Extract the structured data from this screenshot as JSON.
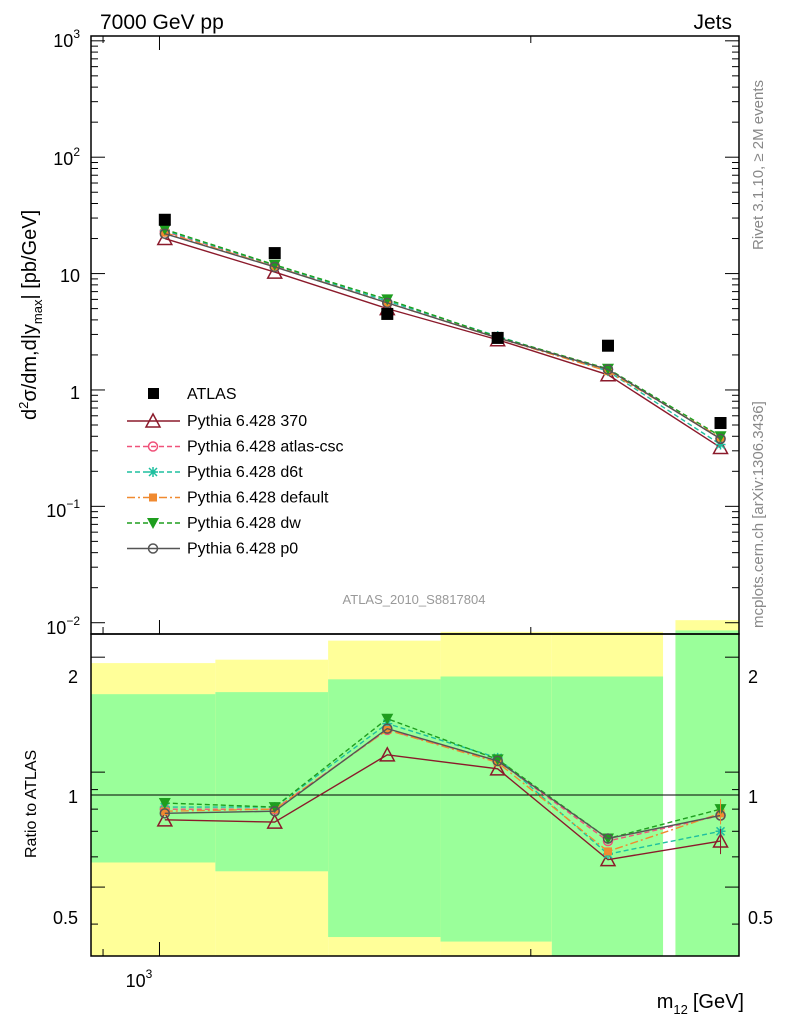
{
  "header": {
    "process": "7000 GeV pp",
    "category": "Jets"
  },
  "side_labels": {
    "rivet": "Rivet 3.1.10, ≥ 2M events",
    "source": "mcplots.cern.ch [arXiv:1306.3436]"
  },
  "watermark": "ATLAS_2010_S8817804",
  "top_yaxis_title": {
    "d": "d",
    "two": "2",
    "sigma": "σ/dm,d|y",
    "max": "max",
    "units": "| [pb/GeV]"
  },
  "top_ticklabels": [
    {
      "base": "10",
      "exp": "3"
    },
    {
      "base": "10",
      "exp": "2"
    },
    {
      "base": "10",
      "exp": ""
    },
    {
      "base": "1",
      "exp": ""
    },
    {
      "base": "10",
      "exp": "−1"
    },
    {
      "base": "10",
      "exp": "−2"
    }
  ],
  "bottom_ylabel": "Ratio to ATLAS",
  "bottom_ticklabels": [
    "2",
    "1",
    "0.5"
  ],
  "x_ticklabel": {
    "base": "10",
    "exp": "3"
  },
  "x_axis_title": {
    "m": "m",
    "sub": "12",
    "units": "[GeV]"
  },
  "legend": {
    "entries": [
      "ATLAS",
      "Pythia 6.428 370",
      "Pythia 6.428 atlas-csc",
      "Pythia 6.428 d6t",
      "Pythia 6.428 default",
      "Pythia 6.428 dw",
      "Pythia 6.428 p0"
    ]
  },
  "chart_data": {
    "type": "line",
    "xlabel": "m12 [GeV]",
    "ylabel": "d2σ/dm,d|ymax| [pb/GeV]",
    "ratio_ylabel": "Ratio to ATLAS",
    "xscale": "log",
    "yscale": "log",
    "xlim": [
      880,
      2950
    ],
    "ylim": [
      0.008,
      1100
    ],
    "ratio_ylim": [
      0.33,
      2.3
    ],
    "legend_position": "lower-left",
    "x": [
      1010,
      1240,
      1530,
      1880,
      2310,
      2850
    ],
    "bins": [
      [
        910,
        1110
      ],
      [
        1110,
        1370
      ],
      [
        1370,
        1690
      ],
      [
        1690,
        2080
      ],
      [
        2080,
        2560
      ],
      [
        2560,
        2880
      ]
    ],
    "band_bins": [
      [
        880,
        1110
      ],
      [
        1110,
        1370
      ],
      [
        1370,
        1690
      ],
      [
        1690,
        2080
      ],
      [
        2080,
        2560
      ],
      [
        2560,
        2950
      ]
    ],
    "reference": {
      "name": "ATLAS",
      "color": "#000000",
      "values": [
        29,
        15,
        4.5,
        2.8,
        2.4,
        0.52
      ]
    },
    "series": [
      {
        "name": "Pythia 6.428 370",
        "color": "#8b1a2b",
        "marker": "triangle",
        "dash": "",
        "values": [
          20,
          10.3,
          5.0,
          2.7,
          1.35,
          0.32
        ],
        "ratio": [
          0.75,
          0.74,
          1.11,
          1.02,
          0.59,
          0.66
        ]
      },
      {
        "name": "Pythia 6.428 atlas-csc",
        "color": "#f0527a",
        "marker": "circle-open",
        "dash": "5,3",
        "values": [
          23,
          11.7,
          5.6,
          2.85,
          1.5,
          0.38
        ],
        "ratio": [
          0.8,
          0.8,
          1.29,
          1.07,
          0.66,
          0.77
        ]
      },
      {
        "name": "Pythia 6.428 d6t",
        "color": "#1fbf9f",
        "marker": "star",
        "dash": "5,3",
        "values": [
          23.5,
          11.8,
          5.8,
          2.9,
          1.45,
          0.34
        ],
        "ratio": [
          0.81,
          0.81,
          1.34,
          1.09,
          0.61,
          0.7
        ]
      },
      {
        "name": "Pythia 6.428 default",
        "color": "#f08a30",
        "marker": "square",
        "dash": "8,3,2,3",
        "values": [
          22.5,
          11.5,
          5.6,
          2.8,
          1.45,
          0.39
        ],
        "ratio": [
          0.79,
          0.8,
          1.29,
          1.06,
          0.62,
          0.78
        ]
      },
      {
        "name": "Pythia 6.428 dw",
        "color": "#1e9e1e",
        "marker": "triangle-down",
        "dash": "5,3",
        "values": [
          24,
          11.9,
          6.0,
          2.85,
          1.52,
          0.4
        ],
        "ratio": [
          0.83,
          0.81,
          1.38,
          1.08,
          0.67,
          0.8
        ]
      },
      {
        "name": "Pythia 6.428 p0",
        "color": "#555555",
        "marker": "circle-open",
        "dash": "",
        "values": [
          22,
          11.4,
          5.6,
          2.8,
          1.5,
          0.38
        ],
        "ratio": [
          0.78,
          0.79,
          1.3,
          1.07,
          0.67,
          0.77
        ]
      }
    ],
    "uncertainty_bands": {
      "stat_syst_inner": {
        "color": "#9aff9a",
        "upper": [
          1.6,
          1.62,
          1.75,
          1.78,
          1.78,
          2.35
        ],
        "lower": [
          0.0,
          0.0,
          0.0,
          0.0,
          0.0,
          0.0
        ]
      },
      "total_outer": {
        "color": "#ffff99",
        "upper": [
          1.93,
          1.97,
          2.21,
          2.33,
          2.33,
          2.5
        ],
        "lower": [
          0.58,
          0.55,
          0.37,
          0.36,
          0.0,
          0.0
        ]
      }
    }
  }
}
